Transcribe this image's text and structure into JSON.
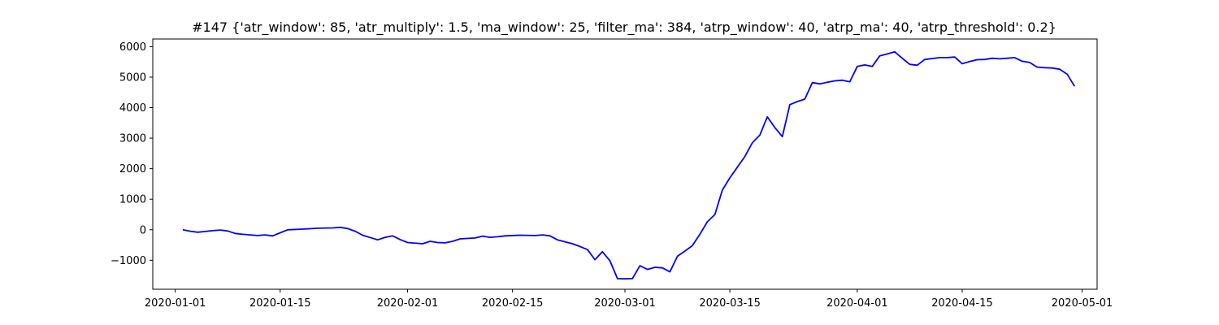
{
  "chart_data": {
    "type": "line",
    "title": "#147 {'atr_window': 85, 'atr_multiply': 1.5, 'ma_window': 25, 'filter_ma': 384, 'atrp_window': 40, 'atrp_ma': 40, 'atrp_threshold': 0.2}",
    "xlabel": "",
    "ylabel": "",
    "xlim": [
      "2019-12-29",
      "2020-05-03"
    ],
    "ylim": [
      -1950,
      6250
    ],
    "grid": false,
    "line_color": "#0000ff",
    "x_ticks": [
      "2020-01-01",
      "2020-01-15",
      "2020-02-01",
      "2020-02-15",
      "2020-03-01",
      "2020-03-15",
      "2020-04-01",
      "2020-04-15",
      "2020-05-01"
    ],
    "y_ticks": [
      -1000,
      0,
      1000,
      2000,
      3000,
      4000,
      5000,
      6000
    ],
    "y_tick_labels": [
      "−1000",
      "0",
      "1000",
      "2000",
      "3000",
      "4000",
      "5000",
      "6000"
    ],
    "series": [
      {
        "x": [
          "2020-01-02",
          "2020-01-03",
          "2020-01-04",
          "2020-01-06",
          "2020-01-07",
          "2020-01-08",
          "2020-01-09",
          "2020-01-10",
          "2020-01-12",
          "2020-01-13",
          "2020-01-14",
          "2020-01-15",
          "2020-01-16",
          "2020-01-18",
          "2020-01-20",
          "2020-01-22",
          "2020-01-23",
          "2020-01-24",
          "2020-01-25",
          "2020-01-26",
          "2020-01-28",
          "2020-01-29",
          "2020-01-30",
          "2020-01-31",
          "2020-02-01",
          "2020-02-03",
          "2020-02-04",
          "2020-02-05",
          "2020-02-06",
          "2020-02-07",
          "2020-02-08",
          "2020-02-10",
          "2020-02-11",
          "2020-02-12",
          "2020-02-13",
          "2020-02-14",
          "2020-02-16",
          "2020-02-18",
          "2020-02-19",
          "2020-02-20",
          "2020-02-21",
          "2020-02-23",
          "2020-02-24",
          "2020-02-25",
          "2020-02-26",
          "2020-02-27",
          "2020-02-28",
          "2020-02-29",
          "2020-03-01",
          "2020-03-02",
          "2020-03-03",
          "2020-03-04",
          "2020-03-05",
          "2020-03-06",
          "2020-03-07",
          "2020-03-08",
          "2020-03-09",
          "2020-03-10",
          "2020-03-11",
          "2020-03-12",
          "2020-03-13",
          "2020-03-14",
          "2020-03-15",
          "2020-03-16",
          "2020-03-17",
          "2020-03-18",
          "2020-03-19",
          "2020-03-20",
          "2020-03-21",
          "2020-03-22",
          "2020-03-23",
          "2020-03-24",
          "2020-03-25",
          "2020-03-26",
          "2020-03-27",
          "2020-03-28",
          "2020-03-29",
          "2020-03-30",
          "2020-03-31",
          "2020-04-01",
          "2020-04-02",
          "2020-04-03",
          "2020-04-04",
          "2020-04-05",
          "2020-04-06",
          "2020-04-07",
          "2020-04-08",
          "2020-04-09",
          "2020-04-10",
          "2020-04-12",
          "2020-04-13",
          "2020-04-14",
          "2020-04-15",
          "2020-04-16",
          "2020-04-17",
          "2020-04-18",
          "2020-04-19",
          "2020-04-20",
          "2020-04-21",
          "2020-04-22",
          "2020-04-23",
          "2020-04-24",
          "2020-04-25",
          "2020-04-26",
          "2020-04-27",
          "2020-04-28",
          "2020-04-29",
          "2020-04-30"
        ],
        "y": [
          0,
          -50,
          -80,
          -30,
          -10,
          -40,
          -120,
          -150,
          -190,
          -170,
          -200,
          -100,
          0,
          20,
          50,
          60,
          80,
          40,
          -50,
          -180,
          -330,
          -250,
          -200,
          -320,
          -420,
          -460,
          -380,
          -420,
          -430,
          -380,
          -300,
          -270,
          -210,
          -250,
          -230,
          -200,
          -180,
          -190,
          -170,
          -200,
          -330,
          -460,
          -550,
          -650,
          -980,
          -720,
          -1020,
          -1600,
          -1610,
          -1600,
          -1180,
          -1300,
          -1230,
          -1250,
          -1380,
          -870,
          -700,
          -520,
          -150,
          260,
          500,
          1300,
          1700,
          2050,
          2400,
          2850,
          3100,
          3700,
          3350,
          3050,
          4100,
          4200,
          4280,
          4820,
          4780,
          4830,
          4880,
          4900,
          4850,
          5350,
          5400,
          5350,
          5700,
          5760,
          5830,
          5620,
          5420,
          5390,
          5580,
          5640,
          5640,
          5660,
          5440,
          5510,
          5570,
          5580,
          5620,
          5600,
          5620,
          5640,
          5520,
          5480,
          5330,
          5310,
          5300,
          5260,
          5100,
          4700
        ]
      }
    ]
  }
}
